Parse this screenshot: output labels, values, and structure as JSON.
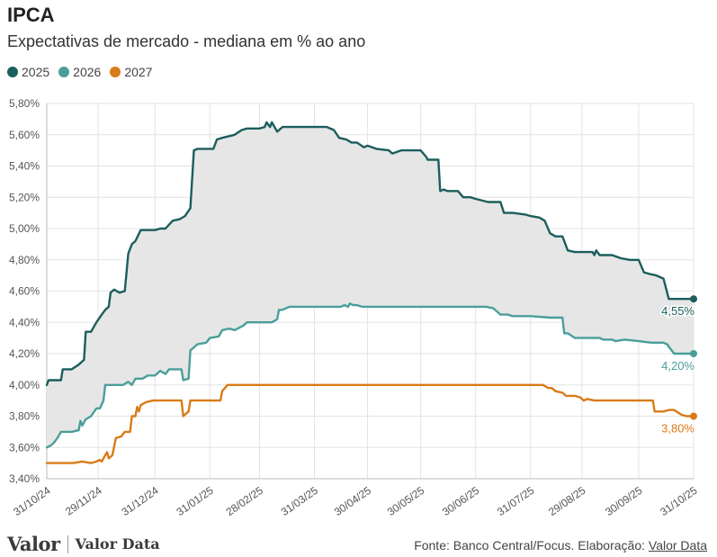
{
  "header": {
    "title": "IPCA",
    "subtitle": "Expectativas de mercado - mediana em % ao ano"
  },
  "footer": {
    "logo_valor": "Valor",
    "logo_data": "Valor Data",
    "source_prefix": "Fonte: Banco Central/Focus. Elaboração:",
    "source_link": "Valor Data"
  },
  "chart_data": {
    "type": "line",
    "ylim": [
      3.4,
      5.8
    ],
    "y_ticks": [
      "3,40%",
      "3,60%",
      "3,80%",
      "4,00%",
      "4,20%",
      "4,40%",
      "4,60%",
      "4,80%",
      "5,00%",
      "5,20%",
      "5,40%",
      "5,60%",
      "5,80%"
    ],
    "x_ticks": [
      {
        "label": "31/10/24",
        "date": "2024-10-31"
      },
      {
        "label": "29/11/24",
        "date": "2024-11-29"
      },
      {
        "label": "31/12/24",
        "date": "2024-12-31"
      },
      {
        "label": "31/01/25",
        "date": "2025-01-31"
      },
      {
        "label": "28/02/25",
        "date": "2025-02-28"
      },
      {
        "label": "31/03/25",
        "date": "2025-03-31"
      },
      {
        "label": "30/04/25",
        "date": "2025-04-30"
      },
      {
        "label": "30/05/25",
        "date": "2025-05-30"
      },
      {
        "label": "30/06/25",
        "date": "2025-06-30"
      },
      {
        "label": "31/07/25",
        "date": "2025-07-31"
      },
      {
        "label": "29/08/25",
        "date": "2025-08-29"
      },
      {
        "label": "30/09/25",
        "date": "2025-09-30"
      },
      {
        "label": "31/10/25",
        "date": "2025-10-31"
      }
    ],
    "x_range": [
      "2024-10-31",
      "2025-10-31"
    ],
    "grid": true,
    "legend_position": "top-left",
    "band_between": [
      "2025",
      "2026"
    ],
    "band_color": "#e6e6e6",
    "series": [
      {
        "name": "2025",
        "color": "#1b5e5c",
        "end_label": "4,55%",
        "points": [
          [
            "2024-10-31",
            4.0
          ],
          [
            "2024-11-01",
            4.03
          ],
          [
            "2024-11-08",
            4.03
          ],
          [
            "2024-11-09",
            4.1
          ],
          [
            "2024-11-14",
            4.1
          ],
          [
            "2024-11-18",
            4.13
          ],
          [
            "2024-11-21",
            4.16
          ],
          [
            "2024-11-22",
            4.34
          ],
          [
            "2024-11-25",
            4.34
          ],
          [
            "2024-11-28",
            4.4
          ],
          [
            "2024-12-01",
            4.45
          ],
          [
            "2024-12-03",
            4.48
          ],
          [
            "2024-12-05",
            4.5
          ],
          [
            "2024-12-06",
            4.59
          ],
          [
            "2024-12-08",
            4.61
          ],
          [
            "2024-12-11",
            4.59
          ],
          [
            "2024-12-14",
            4.6
          ],
          [
            "2024-12-16",
            4.84
          ],
          [
            "2024-12-18",
            4.9
          ],
          [
            "2024-12-20",
            4.92
          ],
          [
            "2024-12-23",
            4.99
          ],
          [
            "2024-12-27",
            4.99
          ],
          [
            "2024-12-31",
            4.99
          ],
          [
            "2025-01-03",
            5.0
          ],
          [
            "2025-01-06",
            5.0
          ],
          [
            "2025-01-10",
            5.05
          ],
          [
            "2025-01-14",
            5.06
          ],
          [
            "2025-01-17",
            5.08
          ],
          [
            "2025-01-20",
            5.13
          ],
          [
            "2025-01-22",
            5.5
          ],
          [
            "2025-01-24",
            5.51
          ],
          [
            "2025-01-31",
            5.51
          ],
          [
            "2025-02-02",
            5.51
          ],
          [
            "2025-02-04",
            5.57
          ],
          [
            "2025-02-07",
            5.58
          ],
          [
            "2025-02-14",
            5.6
          ],
          [
            "2025-02-18",
            5.63
          ],
          [
            "2025-02-21",
            5.64
          ],
          [
            "2025-02-28",
            5.64
          ],
          [
            "2025-03-03",
            5.65
          ],
          [
            "2025-03-04",
            5.68
          ],
          [
            "2025-03-06",
            5.65
          ],
          [
            "2025-03-07",
            5.68
          ],
          [
            "2025-03-10",
            5.62
          ],
          [
            "2025-03-13",
            5.65
          ],
          [
            "2025-03-17",
            5.65
          ],
          [
            "2025-03-20",
            5.65
          ],
          [
            "2025-03-31",
            5.65
          ],
          [
            "2025-04-07",
            5.65
          ],
          [
            "2025-04-11",
            5.63
          ],
          [
            "2025-04-14",
            5.58
          ],
          [
            "2025-04-18",
            5.57
          ],
          [
            "2025-04-21",
            5.55
          ],
          [
            "2025-04-24",
            5.55
          ],
          [
            "2025-04-28",
            5.52
          ],
          [
            "2025-04-30",
            5.53
          ],
          [
            "2025-05-05",
            5.51
          ],
          [
            "2025-05-12",
            5.5
          ],
          [
            "2025-05-14",
            5.48
          ],
          [
            "2025-05-19",
            5.5
          ],
          [
            "2025-05-26",
            5.5
          ],
          [
            "2025-05-30",
            5.5
          ],
          [
            "2025-06-02",
            5.46
          ],
          [
            "2025-06-03",
            5.44
          ],
          [
            "2025-06-09",
            5.44
          ],
          [
            "2025-06-10",
            5.24
          ],
          [
            "2025-06-12",
            5.25
          ],
          [
            "2025-06-14",
            5.24
          ],
          [
            "2025-06-20",
            5.24
          ],
          [
            "2025-06-23",
            5.2
          ],
          [
            "2025-06-27",
            5.2
          ],
          [
            "2025-06-30",
            5.19
          ],
          [
            "2025-07-07",
            5.17
          ],
          [
            "2025-07-14",
            5.17
          ],
          [
            "2025-07-16",
            5.1
          ],
          [
            "2025-07-21",
            5.1
          ],
          [
            "2025-07-28",
            5.09
          ],
          [
            "2025-07-31",
            5.08
          ],
          [
            "2025-08-05",
            5.07
          ],
          [
            "2025-08-08",
            5.05
          ],
          [
            "2025-08-11",
            4.97
          ],
          [
            "2025-08-14",
            4.95
          ],
          [
            "2025-08-18",
            4.95
          ],
          [
            "2025-08-21",
            4.86
          ],
          [
            "2025-08-25",
            4.85
          ],
          [
            "2025-08-29",
            4.85
          ],
          [
            "2025-09-01",
            4.85
          ],
          [
            "2025-09-04",
            4.85
          ],
          [
            "2025-09-05",
            4.83
          ],
          [
            "2025-09-06",
            4.86
          ],
          [
            "2025-09-08",
            4.83
          ],
          [
            "2025-09-15",
            4.83
          ],
          [
            "2025-09-20",
            4.81
          ],
          [
            "2025-09-25",
            4.8
          ],
          [
            "2025-09-30",
            4.8
          ],
          [
            "2025-10-03",
            4.72
          ],
          [
            "2025-10-06",
            4.71
          ],
          [
            "2025-10-10",
            4.7
          ],
          [
            "2025-10-14",
            4.68
          ],
          [
            "2025-10-17",
            4.55
          ],
          [
            "2025-10-24",
            4.55
          ],
          [
            "2025-10-31",
            4.55
          ]
        ]
      },
      {
        "name": "2026",
        "color": "#4a9e9a",
        "end_label": "4,20%",
        "points": [
          [
            "2024-10-31",
            3.6
          ],
          [
            "2024-11-02",
            3.61
          ],
          [
            "2024-11-04",
            3.63
          ],
          [
            "2024-11-06",
            3.66
          ],
          [
            "2024-11-08",
            3.7
          ],
          [
            "2024-11-11",
            3.7
          ],
          [
            "2024-11-14",
            3.7
          ],
          [
            "2024-11-18",
            3.71
          ],
          [
            "2024-11-19",
            3.77
          ],
          [
            "2024-11-20",
            3.74
          ],
          [
            "2024-11-22",
            3.78
          ],
          [
            "2024-11-25",
            3.8
          ],
          [
            "2024-11-28",
            3.85
          ],
          [
            "2024-11-30",
            3.85
          ],
          [
            "2024-12-02",
            3.9
          ],
          [
            "2024-12-03",
            4.0
          ],
          [
            "2024-12-06",
            4.0
          ],
          [
            "2024-12-13",
            4.0
          ],
          [
            "2024-12-16",
            4.02
          ],
          [
            "2024-12-18",
            4.0
          ],
          [
            "2024-12-20",
            4.04
          ],
          [
            "2024-12-24",
            4.04
          ],
          [
            "2024-12-27",
            4.06
          ],
          [
            "2024-12-31",
            4.06
          ],
          [
            "2025-01-03",
            4.09
          ],
          [
            "2025-01-06",
            4.07
          ],
          [
            "2025-01-08",
            4.1
          ],
          [
            "2025-01-13",
            4.1
          ],
          [
            "2025-01-15",
            4.1
          ],
          [
            "2025-01-16",
            4.03
          ],
          [
            "2025-01-19",
            4.04
          ],
          [
            "2025-01-20",
            4.22
          ],
          [
            "2025-01-24",
            4.26
          ],
          [
            "2025-01-29",
            4.27
          ],
          [
            "2025-01-31",
            4.3
          ],
          [
            "2025-02-05",
            4.31
          ],
          [
            "2025-02-07",
            4.35
          ],
          [
            "2025-02-11",
            4.36
          ],
          [
            "2025-02-14",
            4.35
          ],
          [
            "2025-02-19",
            4.38
          ],
          [
            "2025-02-21",
            4.4
          ],
          [
            "2025-02-28",
            4.4
          ],
          [
            "2025-03-07",
            4.4
          ],
          [
            "2025-03-10",
            4.42
          ],
          [
            "2025-03-11",
            4.48
          ],
          [
            "2025-03-13",
            4.48
          ],
          [
            "2025-03-17",
            4.5
          ],
          [
            "2025-03-24",
            4.5
          ],
          [
            "2025-03-31",
            4.5
          ],
          [
            "2025-04-15",
            4.5
          ],
          [
            "2025-04-17",
            4.51
          ],
          [
            "2025-04-19",
            4.5
          ],
          [
            "2025-04-20",
            4.52
          ],
          [
            "2025-04-22",
            4.51
          ],
          [
            "2025-04-24",
            4.51
          ],
          [
            "2025-04-27",
            4.5
          ],
          [
            "2025-04-30",
            4.5
          ],
          [
            "2025-05-30",
            4.5
          ],
          [
            "2025-06-30",
            4.5
          ],
          [
            "2025-07-06",
            4.5
          ],
          [
            "2025-07-10",
            4.49
          ],
          [
            "2025-07-14",
            4.45
          ],
          [
            "2025-07-18",
            4.45
          ],
          [
            "2025-07-21",
            4.44
          ],
          [
            "2025-07-31",
            4.44
          ],
          [
            "2025-08-11",
            4.43
          ],
          [
            "2025-08-18",
            4.43
          ],
          [
            "2025-08-19",
            4.33
          ],
          [
            "2025-08-21",
            4.33
          ],
          [
            "2025-08-25",
            4.3
          ],
          [
            "2025-08-29",
            4.3
          ],
          [
            "2025-09-08",
            4.3
          ],
          [
            "2025-09-10",
            4.29
          ],
          [
            "2025-09-15",
            4.29
          ],
          [
            "2025-09-17",
            4.28
          ],
          [
            "2025-09-22",
            4.29
          ],
          [
            "2025-09-30",
            4.28
          ],
          [
            "2025-10-07",
            4.27
          ],
          [
            "2025-10-14",
            4.27
          ],
          [
            "2025-10-16",
            4.26
          ],
          [
            "2025-10-20",
            4.2
          ],
          [
            "2025-10-31",
            4.2
          ]
        ]
      },
      {
        "name": "2027",
        "color": "#d97b18",
        "end_label": "3,80%",
        "points": [
          [
            "2024-10-31",
            3.5
          ],
          [
            "2024-11-15",
            3.5
          ],
          [
            "2024-11-20",
            3.51
          ],
          [
            "2024-11-25",
            3.5
          ],
          [
            "2024-11-28",
            3.51
          ],
          [
            "2024-11-30",
            3.52
          ],
          [
            "2024-12-01",
            3.51
          ],
          [
            "2024-12-02",
            3.53
          ],
          [
            "2024-12-03",
            3.55
          ],
          [
            "2024-12-04",
            3.57
          ],
          [
            "2024-12-05",
            3.53
          ],
          [
            "2024-12-07",
            3.55
          ],
          [
            "2024-12-09",
            3.66
          ],
          [
            "2024-12-12",
            3.67
          ],
          [
            "2024-12-14",
            3.7
          ],
          [
            "2024-12-17",
            3.7
          ],
          [
            "2024-12-18",
            3.8
          ],
          [
            "2024-12-20",
            3.8
          ],
          [
            "2024-12-21",
            3.86
          ],
          [
            "2024-12-22",
            3.83
          ],
          [
            "2024-12-23",
            3.87
          ],
          [
            "2024-12-26",
            3.89
          ],
          [
            "2024-12-30",
            3.9
          ],
          [
            "2025-01-13",
            3.9
          ],
          [
            "2025-01-15",
            3.9
          ],
          [
            "2025-01-16",
            3.8
          ],
          [
            "2025-01-19",
            3.83
          ],
          [
            "2025-01-20",
            3.9
          ],
          [
            "2025-01-31",
            3.9
          ],
          [
            "2025-02-06",
            3.9
          ],
          [
            "2025-02-07",
            3.96
          ],
          [
            "2025-02-10",
            4.0
          ],
          [
            "2025-02-28",
            4.0
          ],
          [
            "2025-03-31",
            4.0
          ],
          [
            "2025-04-30",
            4.0
          ],
          [
            "2025-05-30",
            4.0
          ],
          [
            "2025-06-30",
            4.0
          ],
          [
            "2025-07-31",
            4.0
          ],
          [
            "2025-08-07",
            4.0
          ],
          [
            "2025-08-10",
            3.98
          ],
          [
            "2025-08-12",
            3.98
          ],
          [
            "2025-08-14",
            3.96
          ],
          [
            "2025-08-18",
            3.95
          ],
          [
            "2025-08-20",
            3.93
          ],
          [
            "2025-08-25",
            3.93
          ],
          [
            "2025-08-28",
            3.92
          ],
          [
            "2025-08-30",
            3.9
          ],
          [
            "2025-09-01",
            3.91
          ],
          [
            "2025-09-05",
            3.9
          ],
          [
            "2025-09-30",
            3.9
          ],
          [
            "2025-10-05",
            3.9
          ],
          [
            "2025-10-08",
            3.9
          ],
          [
            "2025-10-09",
            3.83
          ],
          [
            "2025-10-14",
            3.83
          ],
          [
            "2025-10-17",
            3.84
          ],
          [
            "2025-10-20",
            3.84
          ],
          [
            "2025-10-24",
            3.81
          ],
          [
            "2025-10-27",
            3.8
          ],
          [
            "2025-10-31",
            3.8
          ]
        ]
      }
    ]
  }
}
